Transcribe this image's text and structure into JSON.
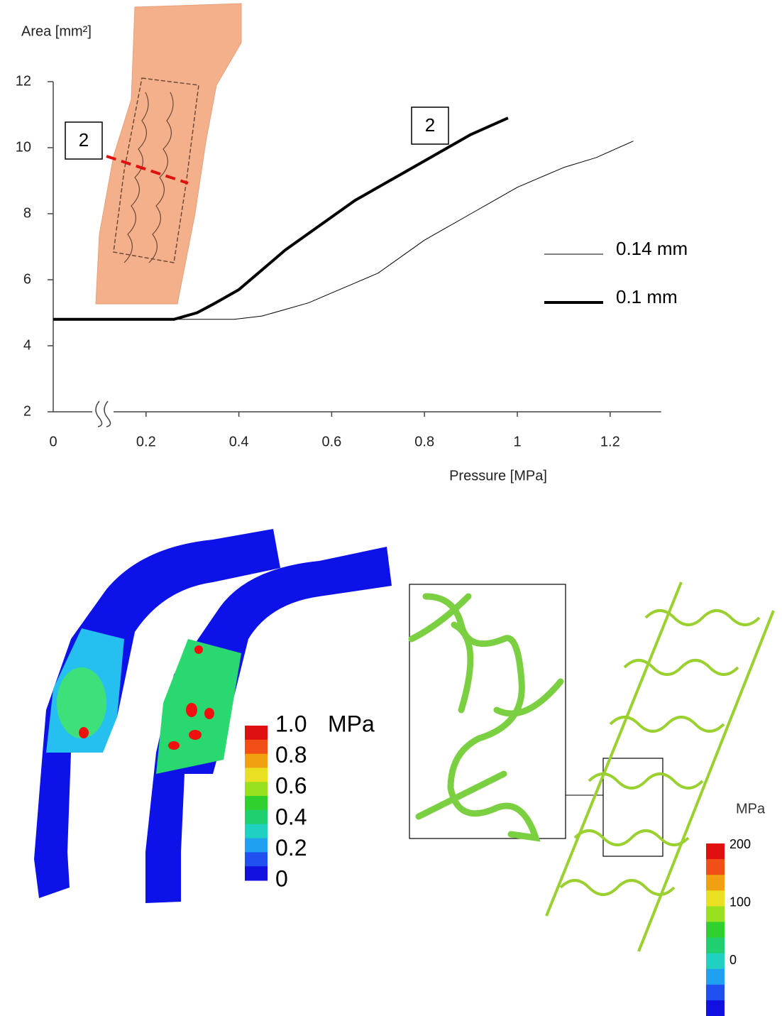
{
  "chart_data": {
    "type": "line",
    "x_label": "Pressure [MPa]",
    "y_label": "Area [mm²]",
    "xlim": [
      0,
      1.31
    ],
    "ylim": [
      2,
      12
    ],
    "xticks": [
      0,
      0.2,
      0.4,
      0.6,
      0.8,
      1,
      1.2
    ],
    "yticks": [
      2,
      4,
      6,
      8,
      10,
      12
    ],
    "legend": "right",
    "annotations": [
      "2",
      "2"
    ],
    "series": [
      {
        "name": "0.14 mm",
        "color": "#000000",
        "width": 1,
        "x": [
          0,
          0.39,
          0.45,
          0.5,
          0.55,
          0.6,
          0.65,
          0.7,
          0.75,
          0.8,
          0.85,
          0.9,
          0.95,
          1.0,
          1.05,
          1.1,
          1.17,
          1.25
        ],
        "values": [
          4.8,
          4.8,
          4.9,
          5.1,
          5.3,
          5.6,
          5.9,
          6.2,
          6.7,
          7.2,
          7.6,
          8.0,
          8.4,
          8.8,
          9.1,
          9.4,
          9.7,
          10.2
        ]
      },
      {
        "name": "0.1 mm",
        "color": "#000000",
        "width": 4,
        "x": [
          0,
          0.26,
          0.31,
          0.35,
          0.4,
          0.45,
          0.5,
          0.55,
          0.6,
          0.65,
          0.7,
          0.75,
          0.8,
          0.85,
          0.9,
          0.98
        ],
        "values": [
          4.8,
          4.8,
          5.0,
          5.3,
          5.7,
          6.3,
          6.9,
          7.4,
          7.9,
          8.4,
          8.8,
          9.2,
          9.6,
          10.0,
          10.4,
          10.9
        ]
      }
    ]
  },
  "colorbars": [
    {
      "unit": "MPa",
      "labels": [
        "1.0",
        "0.8",
        "0.6",
        "0.4",
        "0.2",
        "0"
      ]
    },
    {
      "unit": "MPa",
      "labels": [
        "200",
        "100",
        "0"
      ]
    }
  ]
}
